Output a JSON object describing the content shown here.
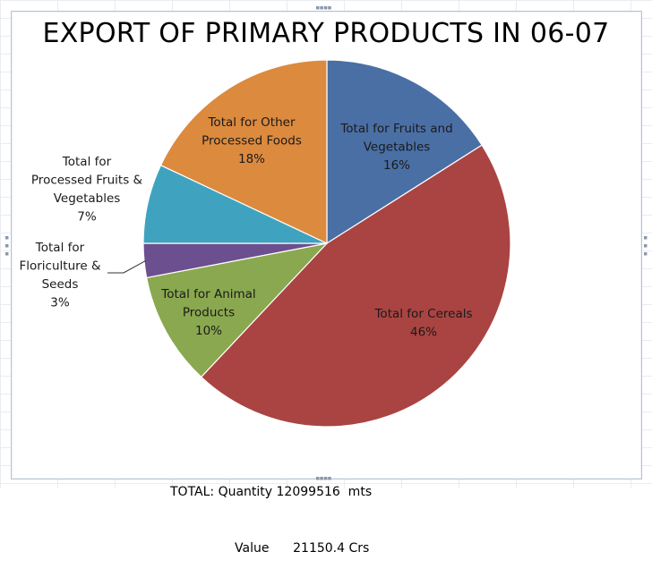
{
  "chart_data": {
    "type": "pie",
    "title": "EXPORT OF PRIMARY PRODUCTS IN 06-07",
    "slices": [
      {
        "label": [
          "Total for Fruits and",
          "Vegetables",
          "16%"
        ],
        "value": 16,
        "color": "#4a6fa5"
      },
      {
        "label": [
          "Total for Cereals",
          "46%"
        ],
        "value": 46,
        "color": "#a94442"
      },
      {
        "label": [
          "Total for Animal",
          "Products",
          "10%"
        ],
        "value": 10,
        "color": "#8aa84f"
      },
      {
        "label": [
          "Total for",
          "Floriculture &",
          "Seeds",
          "3%"
        ],
        "value": 3,
        "color": "#6c4f8f"
      },
      {
        "label": [
          "Total for",
          "Processed Fruits &",
          "Vegetables",
          "7%"
        ],
        "value": 7,
        "color": "#3fa3bf"
      },
      {
        "label": [
          "Total for Other",
          "Processed Foods",
          "18%"
        ],
        "value": 18,
        "color": "#dc8a3e"
      }
    ]
  },
  "footer": {
    "quantity_line": "TOTAL: Quantity 12099516  mts",
    "value_line": "Value      21150.4 Crs"
  },
  "colors": {
    "frame_border": "#b7c3d3"
  }
}
